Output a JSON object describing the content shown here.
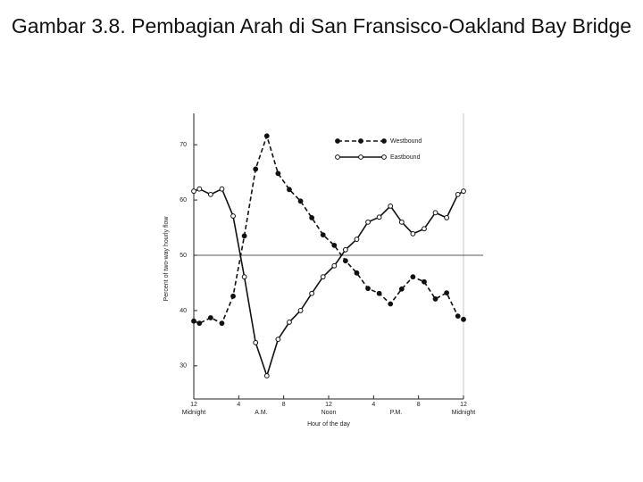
{
  "chart_data": {
    "type": "line",
    "title": "Gambar 3.8. Pembagian Arah di San Fransisco-Oakland Bay Bridge",
    "x_label": "Hour of the day",
    "y_label": "Percent of two-way hourly flow",
    "x": [
      0,
      0.5,
      1.5,
      2.5,
      3.5,
      4.5,
      5.5,
      6.5,
      7.5,
      8.5,
      9.5,
      10.5,
      11.5,
      12.5,
      13.5,
      14.5,
      15.5,
      16.5,
      17.5,
      18.5,
      19.5,
      20.5,
      21.5,
      22.5,
      23.5,
      24
    ],
    "series": [
      {
        "name": "Westbound",
        "color": "#111111",
        "marker": "filled",
        "dashed": true,
        "values": [
          38.1,
          37.7,
          38.7,
          37.7,
          42.6,
          53.5,
          65.6,
          71.6,
          64.8,
          61.9,
          59.8,
          56.8,
          53.7,
          51.8,
          49.0,
          46.8,
          44.0,
          43.1,
          41.2,
          43.9,
          46.1,
          45.2,
          42.1,
          43.2,
          39.0,
          38.4
        ]
      },
      {
        "name": "Eastbound",
        "color": "#111111",
        "marker": "open",
        "dashed": false,
        "values": [
          61.6,
          62.0,
          61.0,
          62.0,
          57.1,
          46.1,
          34.2,
          28.2,
          34.8,
          37.9,
          40.0,
          43.1,
          46.1,
          48.1,
          51.0,
          52.9,
          56.0,
          56.9,
          58.9,
          56.0,
          53.9,
          54.8,
          57.7,
          56.8,
          61.0,
          61.6
        ]
      }
    ],
    "xlim": [
      0,
      24
    ],
    "ylim": [
      24,
      76
    ],
    "xticks": [
      {
        "value": 0,
        "label": "12"
      },
      4,
      8,
      {
        "value": 12,
        "label": "12"
      },
      {
        "value": 16,
        "label": "4"
      },
      {
        "value": 20,
        "label": "8"
      },
      {
        "value": 24,
        "label": "12"
      }
    ],
    "period_labels": [
      {
        "value": 0,
        "label": "Midnight"
      },
      {
        "value": 6,
        "label": "A.M."
      },
      {
        "value": 12,
        "label": "Noon"
      },
      {
        "value": 18,
        "label": "P.M."
      },
      {
        "value": 24,
        "label": "Midnight"
      }
    ],
    "yticks": [
      30,
      40,
      50,
      60,
      70
    ],
    "reference_line": 50,
    "legend": "top-right"
  }
}
